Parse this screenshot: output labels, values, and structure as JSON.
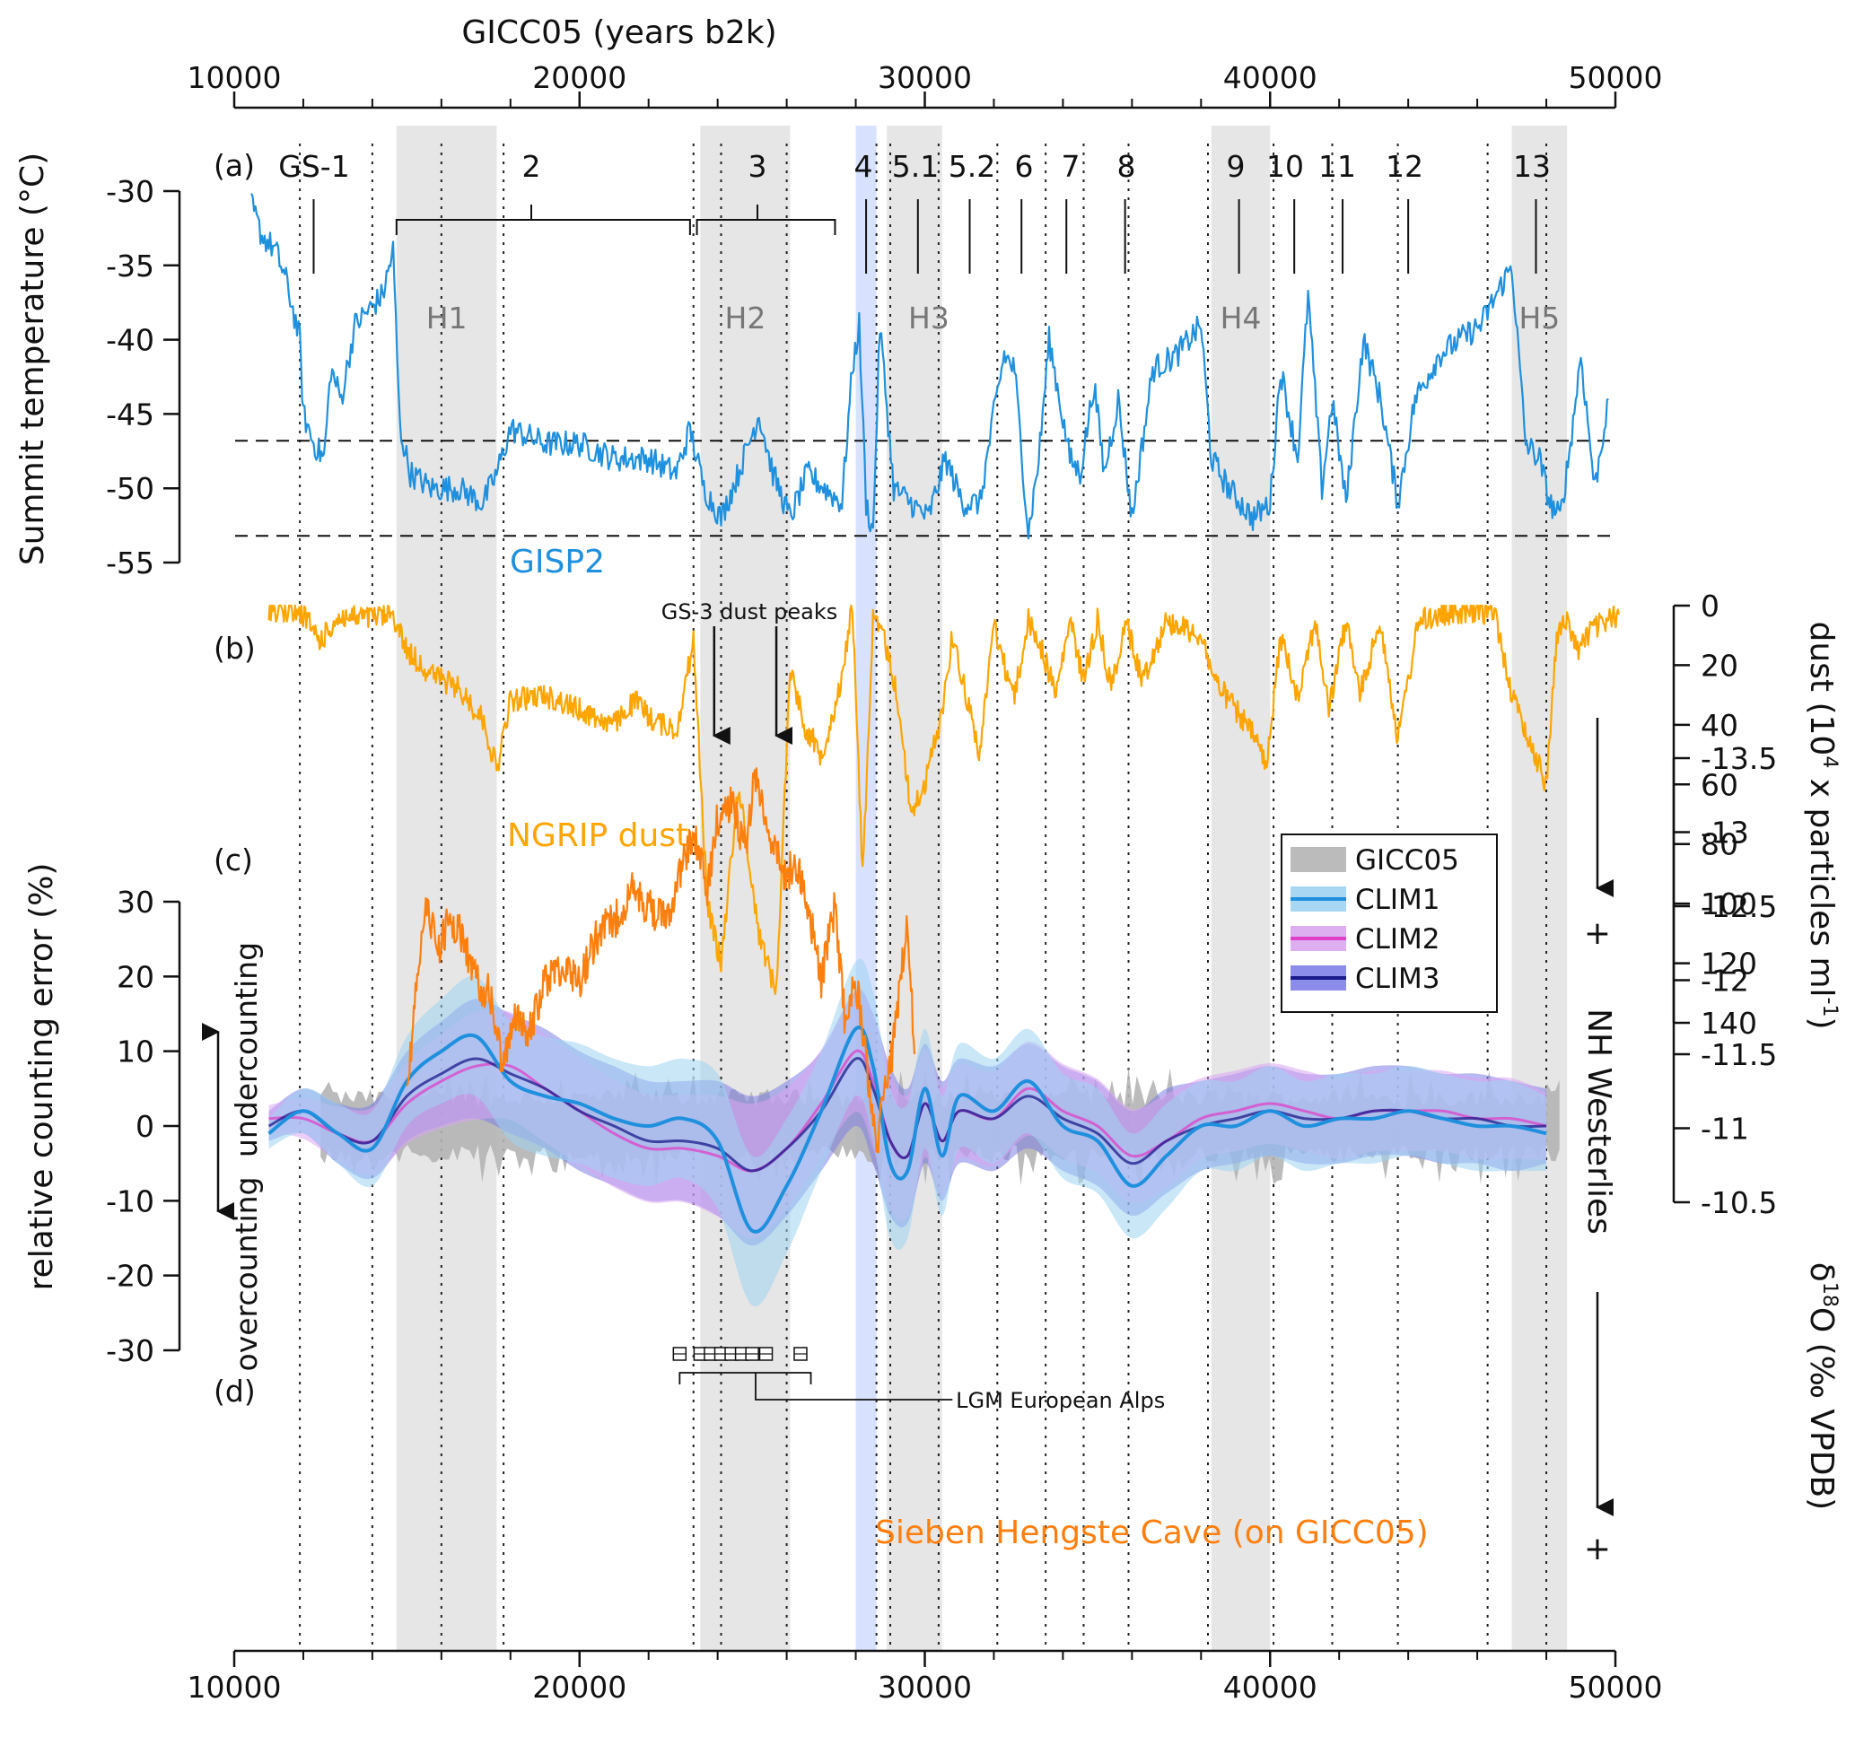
{
  "chart_data": {
    "type": "line",
    "title": "",
    "top_axis_title": "GICC05 (years b2k)",
    "x_range": [
      10000,
      50000
    ],
    "x_ticks": [
      10000,
      20000,
      30000,
      40000,
      50000
    ],
    "x_tick_labels": [
      "10000",
      "20000",
      "30000",
      "40000",
      "50000"
    ],
    "x_minor_ticks": [
      12000,
      14000,
      16000,
      18000,
      22000,
      24000,
      26000,
      28000,
      32000,
      34000,
      36000,
      38000,
      42000,
      44000,
      46000,
      48000
    ],
    "dotted_lines": [
      11900,
      14000,
      16000,
      17800,
      23300,
      24100,
      26000,
      28600,
      29000,
      30400,
      32100,
      33500,
      34600,
      35900,
      38200,
      40100,
      41800,
      43700,
      46300,
      48000
    ],
    "heinrich_bands": [
      {
        "label": "H1",
        "start": 14700,
        "end": 17600
      },
      {
        "label": "H2",
        "start": 23500,
        "end": 26100
      },
      {
        "label": "H3",
        "start": 28900,
        "end": 30500
      },
      {
        "label": "H4",
        "start": 38300,
        "end": 40000
      },
      {
        "label": "H5",
        "start": 47000,
        "end": 48600
      }
    ],
    "gs4_band": {
      "start": 28000,
      "end": 28600
    },
    "panel_labels": [
      "(a)",
      "(b)",
      "(c)",
      "(d)"
    ],
    "events": [
      {
        "label": "GS-1",
        "x": 12300
      },
      {
        "label": "2",
        "x": 18300
      },
      {
        "label": "3",
        "x": 25800
      },
      {
        "label": "4",
        "x": 28300
      },
      {
        "label": "5.1",
        "x": 29800
      },
      {
        "label": "5.2",
        "x": 31300
      },
      {
        "label": "6",
        "x": 32800
      },
      {
        "label": "7",
        "x": 34100
      },
      {
        "label": "8",
        "x": 35800
      },
      {
        "label": "9",
        "x": 39100
      },
      {
        "label": "10",
        "x": 40700
      },
      {
        "label": "11",
        "x": 42100
      },
      {
        "label": "12",
        "x": 44000
      },
      {
        "label": "13",
        "x": 47700
      }
    ],
    "gs2_bracket": [
      14700,
      23200
    ],
    "gs3_bracket": [
      23400,
      27400
    ],
    "panel_a": {
      "ylabel": "Summit temperature (°C)",
      "ylim": [
        -55,
        -30
      ],
      "y_ticks": [
        -30,
        -35,
        -40,
        -45,
        -50,
        -55
      ],
      "y_tick_labels": [
        "-30",
        "-35",
        "-40",
        "-45",
        "-50",
        "-55"
      ],
      "dashed_levels": [
        -46.8,
        -53.2
      ],
      "series_name": "GISP2",
      "color": "#1f90dd",
      "x": [
        10500,
        10800,
        11200,
        11500,
        11900,
        12000,
        12300,
        12600,
        12800,
        13100,
        13500,
        13900,
        14300,
        14600,
        14800,
        15100,
        15700,
        16500,
        17200,
        17600,
        18000,
        19000,
        20000,
        21000,
        22000,
        22800,
        23200,
        23600,
        24100,
        24600,
        25200,
        25600,
        26100,
        26600,
        27100,
        27600,
        27900,
        28100,
        28300,
        28500,
        28700,
        29100,
        29600,
        30100,
        30600,
        31100,
        31600,
        32000,
        32300,
        32600,
        33000,
        33300,
        33600,
        34200,
        34500,
        34900,
        35200,
        35600,
        36000,
        36600,
        37300,
        38000,
        38300,
        38800,
        39500,
        40000,
        40300,
        40800,
        41100,
        41500,
        41800,
        42200,
        42700,
        43200,
        43700,
        44200,
        44900,
        46100,
        47000,
        47400,
        47800,
        48100,
        48400,
        48700,
        49000,
        49400,
        49800
      ],
      "values": [
        -31,
        -33,
        -34,
        -36,
        -40,
        -45,
        -47,
        -48,
        -42,
        -44,
        -39,
        -38,
        -37,
        -34,
        -46,
        -49,
        -50,
        -50,
        -51,
        -49,
        -46,
        -47,
        -47,
        -48,
        -48,
        -49,
        -46,
        -50,
        -52,
        -49,
        -45,
        -49,
        -52,
        -49,
        -50,
        -51,
        -42,
        -39,
        -51,
        -53,
        -39,
        -50,
        -51,
        -52,
        -48,
        -51,
        -51,
        -45,
        -41,
        -42,
        -53,
        -48,
        -40,
        -48,
        -49,
        -43,
        -49,
        -44,
        -52,
        -42,
        -41,
        -39,
        -48,
        -50,
        -52,
        -51,
        -42,
        -48,
        -37,
        -50,
        -44,
        -51,
        -40,
        -44,
        -51,
        -44,
        -41,
        -39,
        -35,
        -47,
        -48,
        -51,
        -52,
        -47,
        -41,
        -50,
        -44
      ]
    },
    "panel_b": {
      "ylabel": "dust (10^4 x particles ml^-1)",
      "ylim": [
        0,
        140
      ],
      "y_ticks": [
        0,
        20,
        40,
        60,
        80,
        100,
        120,
        140
      ],
      "y_tick_labels": [
        "0",
        "20",
        "40",
        "60",
        "80",
        "100",
        "120",
        "140"
      ],
      "series_name": "NGRIP dust",
      "color": "#ffa500",
      "annotation": "GS-3 dust peaks",
      "annotation_arrows_x": [
        23900,
        25700
      ],
      "axis_arrow_label": "+",
      "x": [
        11000,
        11500,
        12000,
        12500,
        13000,
        13500,
        14000,
        14600,
        15000,
        15600,
        16500,
        17200,
        17600,
        18000,
        19000,
        20000,
        21000,
        21600,
        22100,
        22800,
        23300,
        23700,
        24100,
        24600,
        25200,
        25700,
        26100,
        26500,
        27000,
        27500,
        27900,
        28200,
        28500,
        28800,
        29200,
        29600,
        30000,
        30500,
        30800,
        31100,
        31600,
        32000,
        32300,
        32600,
        33000,
        33400,
        33800,
        34200,
        34600,
        35000,
        35400,
        35800,
        36300,
        37000,
        38000,
        38400,
        39000,
        39600,
        39900,
        40300,
        40800,
        41300,
        41700,
        42200,
        42600,
        43200,
        43700,
        44300,
        45000,
        46500,
        47000,
        47500,
        48000,
        48300,
        48600,
        48900,
        49300,
        49800,
        50100
      ],
      "values": [
        1,
        2,
        3,
        12,
        4,
        4,
        4,
        3,
        15,
        22,
        28,
        38,
        55,
        32,
        30,
        35,
        40,
        32,
        38,
        42,
        12,
        100,
        120,
        60,
        110,
        130,
        20,
        40,
        50,
        30,
        0,
        90,
        5,
        10,
        30,
        70,
        60,
        35,
        10,
        25,
        50,
        5,
        20,
        30,
        5,
        15,
        30,
        5,
        25,
        5,
        28,
        5,
        25,
        5,
        10,
        25,
        35,
        45,
        55,
        10,
        30,
        5,
        35,
        5,
        30,
        5,
        45,
        5,
        3,
        2,
        30,
        45,
        60,
        10,
        5,
        15,
        8,
        5,
        3
      ]
    },
    "panel_c": {
      "ylabel": "relative counting error (%)",
      "ylim": [
        -30,
        30
      ],
      "y_ticks": [
        30,
        20,
        10,
        0,
        -10,
        -20,
        -30
      ],
      "y_tick_labels": [
        "30",
        "20",
        "10",
        "0",
        "-10",
        "-20",
        "-30"
      ],
      "arrow_up_label": "undercounting",
      "arrow_down_label": "overcounting",
      "legend": [
        "GICC05",
        "CLIM1",
        "CLIM2",
        "CLIM3"
      ],
      "legend_colors": [
        "#a8a8a8",
        "#1f90dd",
        "#e040c8",
        "#1a1a8a"
      ],
      "legend_band_colors": [
        "#b4b4b4",
        "#9fd3f2",
        "#d9a6f0",
        "#8080e8"
      ],
      "x": [
        11000,
        12000,
        13000,
        14000,
        15000,
        16000,
        17000,
        18000,
        19000,
        20000,
        21000,
        22000,
        23000,
        24000,
        25000,
        26000,
        27000,
        28000,
        28500,
        29000,
        29500,
        30000,
        30500,
        31000,
        32000,
        33000,
        34000,
        35000,
        36000,
        37000,
        38000,
        39000,
        40000,
        41000,
        42000,
        43000,
        44000,
        45000,
        46000,
        47000,
        48000
      ],
      "series": [
        {
          "name": "GICC05",
          "values": [
            0,
            0,
            0,
            0,
            0,
            0,
            0,
            0,
            0,
            0,
            0,
            0,
            0,
            0,
            0,
            0,
            0,
            0,
            0,
            0,
            0,
            0,
            0,
            0,
            0,
            0,
            0,
            0,
            0,
            0,
            0,
            0,
            0,
            0,
            0,
            0,
            0,
            0,
            0,
            0,
            0
          ]
        },
        {
          "name": "CLIM1",
          "values": [
            -1,
            2,
            -1,
            -3,
            6,
            10,
            12,
            6,
            4,
            3,
            1,
            0,
            1,
            -2,
            -14,
            -8,
            2,
            13,
            8,
            -5,
            -6,
            5,
            -4,
            4,
            2,
            6,
            0,
            -2,
            -8,
            -4,
            0,
            0,
            2,
            0,
            1,
            1,
            2,
            1,
            0,
            0,
            -1
          ]
        },
        {
          "name": "CLIM2",
          "values": [
            1,
            1,
            -1,
            -2,
            3,
            6,
            8,
            8,
            5,
            2,
            -1,
            -3,
            -3,
            -4,
            -6,
            -3,
            3,
            10,
            6,
            -2,
            -4,
            3,
            -2,
            2,
            1,
            5,
            2,
            0,
            -4,
            -2,
            1,
            2,
            3,
            2,
            1,
            2,
            2,
            2,
            1,
            1,
            0
          ]
        },
        {
          "name": "CLIM3",
          "values": [
            0,
            2,
            -1,
            -2,
            4,
            7,
            9,
            7,
            5,
            2,
            0,
            -2,
            -2,
            -3,
            -6,
            -3,
            2,
            9,
            5,
            -2,
            -4,
            3,
            -2,
            2,
            1,
            4,
            1,
            -1,
            -5,
            -2,
            0,
            1,
            2,
            1,
            1,
            2,
            2,
            1,
            1,
            0,
            0
          ]
        }
      ]
    },
    "panel_d": {
      "ylabel": "δ18O (‰ VPDB)",
      "ylim": [
        -13.5,
        -10.5
      ],
      "y_ticks": [
        -10.5,
        -11,
        -11.5,
        -12,
        -12.5,
        -13,
        -13.5
      ],
      "y_tick_labels": [
        "-10.5",
        "-11",
        "-11.5",
        "-12",
        "-12.5",
        "-13",
        "-13.5"
      ],
      "series_name": "Sieben Hengste Cave (on GICC05)",
      "color": "#ff7f0e",
      "annotation": "LGM European Alps",
      "lgm_bracket": [
        22900,
        26700
      ],
      "lgm_boxes_x": [
        22900,
        23500,
        23800,
        24100,
        24400,
        24700,
        25000,
        25400,
        26400
      ],
      "right_label": "NH Westerlies",
      "axis_arrow_label": "+",
      "x": [
        15000,
        15300,
        15600,
        15900,
        16200,
        16600,
        17000,
        17400,
        17800,
        18100,
        18500,
        19000,
        19500,
        20000,
        20500,
        21000,
        21500,
        22000,
        22500,
        23000,
        23300,
        23700,
        24000,
        24400,
        24800,
        25100,
        25500,
        25900,
        26300,
        26700,
        27000,
        27400,
        27700,
        28000,
        28300,
        28600,
        28800,
        29000,
        29300,
        29500,
        29700
      ],
      "values": [
        -11.2,
        -12.1,
        -12.5,
        -12.2,
        -12.4,
        -12.3,
        -12.0,
        -11.9,
        -11.4,
        -11.8,
        -11.6,
        -12.0,
        -12.1,
        -12.0,
        -12.3,
        -12.4,
        -12.6,
        -12.5,
        -12.4,
        -12.8,
        -13.0,
        -12.6,
        -13.1,
        -13.2,
        -12.9,
        -13.4,
        -13.0,
        -12.7,
        -12.8,
        -12.4,
        -12.0,
        -12.5,
        -11.7,
        -12.0,
        -11.5,
        -10.8,
        -11.3,
        -11.4,
        -12.0,
        -12.4,
        -11.5
      ]
    }
  }
}
